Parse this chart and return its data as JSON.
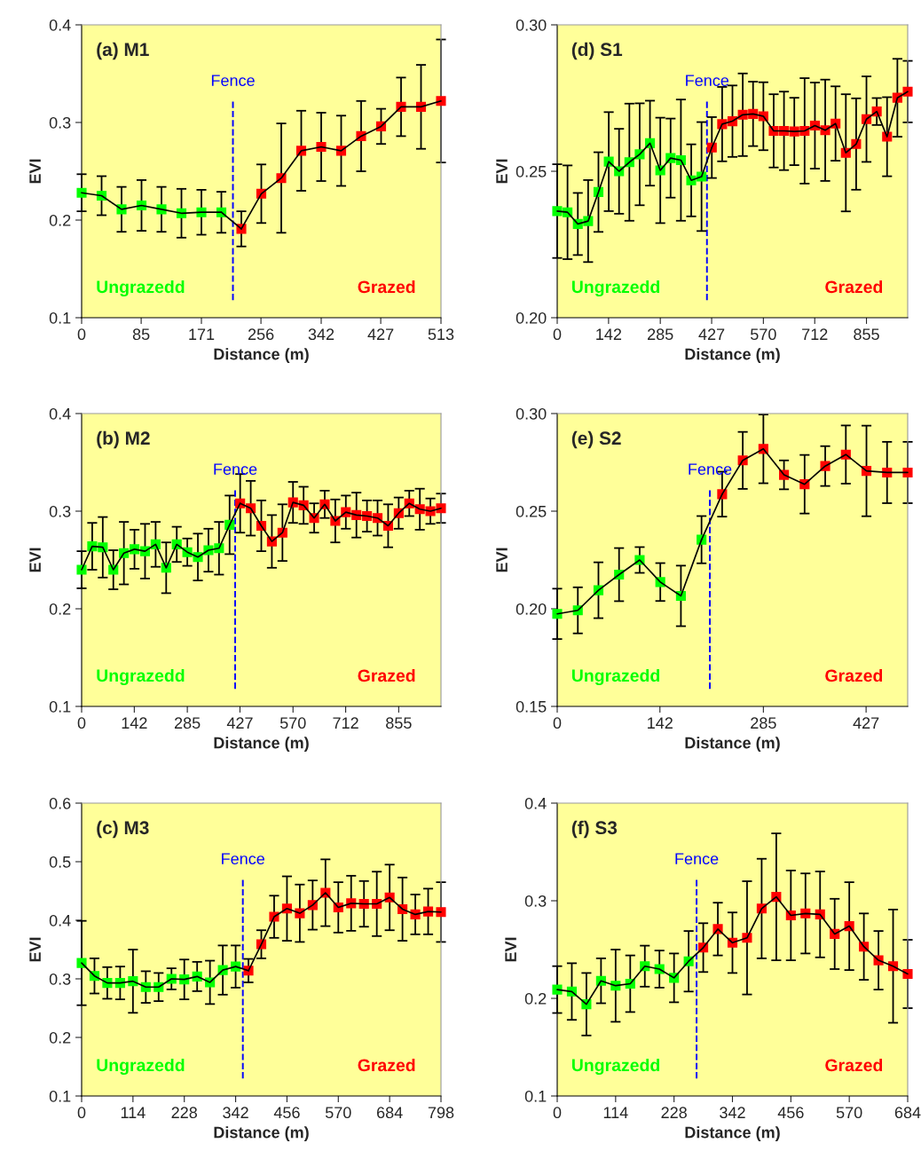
{
  "chart_data": [
    {
      "type": "line",
      "title": "(a) M1",
      "xlabel": "Distance (m)",
      "ylabel": "EVI",
      "marker": "square",
      "xlim": [
        0,
        513
      ],
      "xticks": [
        0,
        85,
        171,
        256,
        342,
        427,
        513
      ],
      "ylim": [
        0.1,
        0.4
      ],
      "yticks": [
        0.1,
        0.2,
        0.3,
        0.4
      ],
      "ref_lines": [
        {
          "axis": "x",
          "value": 216,
          "label": "Fence",
          "color": "#0000ff",
          "line_style": "dashed"
        }
      ],
      "series": [
        {
          "name": "Ungrazedd",
          "color": "#00ff00",
          "x": [
            0,
            28.5,
            57,
            85.5,
            114,
            142.5,
            171,
            199.5
          ],
          "values": [
            0.228,
            0.225,
            0.211,
            0.215,
            0.211,
            0.207,
            0.208,
            0.208
          ],
          "errors": [
            0.019,
            0.02,
            0.023,
            0.026,
            0.023,
            0.025,
            0.023,
            0.021
          ]
        },
        {
          "name": "Grazed",
          "color": "#ff0000",
          "x": [
            228,
            256.5,
            285,
            313.5,
            342,
            370.5,
            399,
            427.5,
            456,
            484.5,
            513
          ],
          "values": [
            0.191,
            0.227,
            0.243,
            0.271,
            0.275,
            0.271,
            0.286,
            0.296,
            0.316,
            0.316,
            0.322
          ],
          "errors": [
            0.018,
            0.03,
            0.056,
            0.041,
            0.035,
            0.036,
            0.036,
            0.018,
            0.03,
            0.043,
            0.063
          ]
        }
      ]
    },
    {
      "type": "line",
      "title": "(d) S1",
      "xlabel": "Distance (m)",
      "ylabel": "EVI",
      "marker": "square",
      "xlim": [
        0,
        969
      ],
      "xticks": [
        0,
        142,
        285,
        427,
        570,
        712,
        855
      ],
      "ylim": [
        0.2,
        0.3
      ],
      "yticks": [
        {
          "value": 0.2,
          "label": "0.20"
        },
        {
          "value": 0.25,
          "label": "0.25"
        },
        {
          "value": 0.3,
          "label": "0.30"
        }
      ],
      "ref_lines": [
        {
          "axis": "x",
          "value": 414,
          "label": "Fence",
          "color": "#0000ff",
          "line_style": "dashed"
        }
      ],
      "series": [
        {
          "name": "Ungrazedd",
          "color": "#00ff00",
          "x": [
            0,
            28.5,
            57,
            85.5,
            114,
            142.5,
            171,
            199.5,
            228,
            256.5,
            285,
            313.5,
            342,
            370.5,
            399
          ],
          "values": [
            0.2364,
            0.236,
            0.232,
            0.233,
            0.2429,
            0.2533,
            0.25,
            0.2531,
            0.2558,
            0.2596,
            0.2503,
            0.2545,
            0.2538,
            0.2469,
            0.2482
          ],
          "errors": [
            0.016,
            0.016,
            0.0106,
            0.014,
            0.0136,
            0.0169,
            0.0145,
            0.02,
            0.0174,
            0.0145,
            0.018,
            0.0135,
            0.0207,
            0.0123,
            0.0186
          ]
        },
        {
          "name": "Grazed",
          "color": "#ff0000",
          "x": [
            427.5,
            456,
            484.5,
            513,
            541.5,
            570,
            598.5,
            627,
            655.5,
            684,
            712.5,
            741,
            769.5,
            798,
            826.5,
            855,
            883.5,
            912,
            940.5,
            969
          ],
          "values": [
            0.2581,
            0.2661,
            0.2671,
            0.2693,
            0.2696,
            0.2688,
            0.2638,
            0.2638,
            0.2636,
            0.2638,
            0.2656,
            0.264,
            0.2663,
            0.2563,
            0.2593,
            0.2678,
            0.2704,
            0.2618,
            0.2751,
            0.2772
          ],
          "errors": [
            0.0104,
            0.0127,
            0.0122,
            0.0141,
            0.011,
            0.0116,
            0.0125,
            0.0134,
            0.0115,
            0.018,
            0.0147,
            0.0173,
            0.0127,
            0.02,
            0.0156,
            0.0146,
            0.0046,
            0.0135,
            0.0133,
            0.0105
          ]
        }
      ]
    },
    {
      "type": "line",
      "title": "(b) M2",
      "xlabel": "Distance (m)",
      "ylabel": "EVI",
      "marker": "square",
      "xlim": [
        0,
        969
      ],
      "xticks": [
        0,
        142,
        285,
        427,
        570,
        712,
        855
      ],
      "ylim": [
        0.1,
        0.4
      ],
      "yticks": [
        0.1,
        0.2,
        0.3,
        0.4
      ],
      "ref_lines": [
        {
          "axis": "x",
          "value": 414,
          "label": "Fence",
          "color": "#0000ff",
          "line_style": "dashed"
        }
      ],
      "series": [
        {
          "name": "Ungrazedd",
          "color": "#00ff00",
          "x": [
            0,
            28.5,
            57,
            85.5,
            114,
            142.5,
            171,
            199.5,
            228,
            256.5,
            285,
            313.5,
            342,
            370.5,
            399
          ],
          "values": [
            0.24,
            0.264,
            0.263,
            0.24,
            0.257,
            0.261,
            0.259,
            0.266,
            0.242,
            0.266,
            0.258,
            0.253,
            0.26,
            0.262,
            0.286
          ],
          "errors": [
            0.019,
            0.024,
            0.031,
            0.02,
            0.032,
            0.02,
            0.028,
            0.023,
            0.026,
            0.018,
            0.014,
            0.024,
            0.022,
            0.027,
            0.03
          ]
        },
        {
          "name": "Grazed",
          "color": "#ff0000",
          "x": [
            427.5,
            456,
            484.5,
            513,
            541.5,
            570,
            598.5,
            627,
            655.5,
            684,
            712.5,
            741,
            769.5,
            798,
            826.5,
            855,
            883.5,
            912,
            940.5,
            969
          ],
          "values": [
            0.308,
            0.303,
            0.285,
            0.269,
            0.278,
            0.309,
            0.306,
            0.293,
            0.307,
            0.29,
            0.299,
            0.296,
            0.295,
            0.293,
            0.285,
            0.298,
            0.308,
            0.302,
            0.3,
            0.303
          ],
          "errors": [
            0.03,
            0.028,
            0.026,
            0.027,
            0.029,
            0.021,
            0.019,
            0.015,
            0.014,
            0.022,
            0.017,
            0.023,
            0.016,
            0.018,
            0.022,
            0.016,
            0.013,
            0.021,
            0.013,
            0.015
          ]
        }
      ]
    },
    {
      "type": "line",
      "title": "(e) S2",
      "xlabel": "Distance (m)",
      "ylabel": "EVI",
      "marker": "square",
      "xlim": [
        0,
        484.5
      ],
      "xticks": [
        0,
        142,
        285,
        427
      ],
      "ylim": [
        0.15,
        0.3
      ],
      "yticks": [
        {
          "value": 0.15,
          "label": "0.15"
        },
        {
          "value": 0.2,
          "label": "0.20"
        },
        {
          "value": 0.25,
          "label": "0.25"
        },
        {
          "value": 0.3,
          "label": "0.30"
        }
      ],
      "ref_lines": [
        {
          "axis": "x",
          "value": 211,
          "label": "Fence",
          "color": "#0000ff",
          "line_style": "dashed"
        }
      ],
      "series": [
        {
          "name": "Ungrazedd",
          "color": "#00ff00",
          "x": [
            0,
            28.5,
            57,
            85.5,
            114,
            142.5,
            171,
            199.5
          ],
          "values": [
            0.1974,
            0.1992,
            0.2095,
            0.2175,
            0.225,
            0.2137,
            0.2066,
            0.2354
          ],
          "errors": [
            0.0129,
            0.0118,
            0.0143,
            0.0136,
            0.0066,
            0.0097,
            0.0155,
            0.0121
          ]
        },
        {
          "name": "Grazed",
          "color": "#ff0000",
          "x": [
            228,
            256.5,
            285,
            313.5,
            342,
            370.5,
            399,
            427.5,
            456,
            484.5
          ],
          "values": [
            0.2587,
            0.276,
            0.2819,
            0.2686,
            0.2638,
            0.2731,
            0.279,
            0.2706,
            0.2698,
            0.2698
          ],
          "errors": [
            0.0115,
            0.0146,
            0.0176,
            0.0074,
            0.015,
            0.0102,
            0.0149,
            0.0232,
            0.0157,
            0.0157
          ]
        }
      ]
    },
    {
      "type": "line",
      "title": "(c) M3",
      "xlabel": "Distance (m)",
      "ylabel": "EVI",
      "marker": "square",
      "xlim": [
        0,
        798
      ],
      "xticks": [
        0,
        114,
        228,
        342,
        456,
        570,
        684,
        798
      ],
      "ylim": [
        0.1,
        0.6
      ],
      "yticks": [
        0.1,
        0.2,
        0.3,
        0.4,
        0.5,
        0.6
      ],
      "ref_lines": [
        {
          "axis": "x",
          "value": 358,
          "label": "Fence",
          "color": "#0000ff",
          "line_style": "dashed"
        }
      ],
      "series": [
        {
          "name": "Ungrazedd",
          "color": "#00ff00",
          "x": [
            0,
            28.5,
            57,
            85.5,
            114,
            142.5,
            171,
            199.5,
            228,
            256.5,
            285,
            313.5,
            342
          ],
          "values": [
            0.327,
            0.305,
            0.293,
            0.293,
            0.296,
            0.286,
            0.286,
            0.3,
            0.299,
            0.304,
            0.294,
            0.315,
            0.321
          ],
          "errors": [
            0.072,
            0.03,
            0.027,
            0.028,
            0.054,
            0.027,
            0.024,
            0.018,
            0.034,
            0.025,
            0.037,
            0.042,
            0.036
          ]
        },
        {
          "name": "Grazed",
          "color": "#ff0000",
          "x": [
            370.5,
            399,
            427.5,
            456,
            484.5,
            513,
            541.5,
            570,
            598.5,
            627,
            655.5,
            684,
            712.5,
            741,
            769.5,
            798
          ],
          "values": [
            0.314,
            0.359,
            0.406,
            0.42,
            0.412,
            0.426,
            0.447,
            0.422,
            0.429,
            0.428,
            0.428,
            0.439,
            0.419,
            0.41,
            0.415,
            0.414
          ],
          "errors": [
            0.02,
            0.024,
            0.036,
            0.055,
            0.049,
            0.042,
            0.057,
            0.043,
            0.047,
            0.039,
            0.055,
            0.056,
            0.054,
            0.034,
            0.039,
            0.051
          ]
        }
      ]
    },
    {
      "type": "line",
      "title": "(f) S3",
      "xlabel": "Distance (m)",
      "ylabel": "EVI",
      "marker": "square",
      "xlim": [
        0,
        684
      ],
      "xticks": [
        0,
        114,
        228,
        342,
        456,
        570,
        684
      ],
      "ylim": [
        0.1,
        0.4
      ],
      "yticks": [
        0.1,
        0.2,
        0.3,
        0.4
      ],
      "ref_lines": [
        {
          "axis": "x",
          "value": 272,
          "label": "Fence",
          "color": "#0000ff",
          "line_style": "dashed"
        }
      ],
      "series": [
        {
          "name": "Ungrazedd",
          "color": "#00ff00",
          "x": [
            0,
            28.5,
            57,
            85.5,
            114,
            142.5,
            171,
            199.5,
            228,
            256.5
          ],
          "values": [
            0.209,
            0.207,
            0.194,
            0.218,
            0.213,
            0.215,
            0.233,
            0.23,
            0.221,
            0.238
          ],
          "errors": [
            0.024,
            0.029,
            0.032,
            0.023,
            0.037,
            0.029,
            0.021,
            0.019,
            0.025,
            0.031
          ]
        },
        {
          "name": "Grazed",
          "color": "#ff0000",
          "x": [
            285,
            313.5,
            342,
            370.5,
            399,
            427.5,
            456,
            484.5,
            513,
            541.5,
            570,
            598.5,
            627,
            655.5,
            684
          ],
          "values": [
            0.252,
            0.271,
            0.257,
            0.262,
            0.292,
            0.304,
            0.285,
            0.287,
            0.286,
            0.266,
            0.274,
            0.253,
            0.239,
            0.233,
            0.225
          ],
          "errors": [
            0.025,
            0.027,
            0.031,
            0.058,
            0.051,
            0.065,
            0.046,
            0.041,
            0.044,
            0.036,
            0.045,
            0.034,
            0.03,
            0.058,
            0.035
          ]
        }
      ]
    }
  ]
}
